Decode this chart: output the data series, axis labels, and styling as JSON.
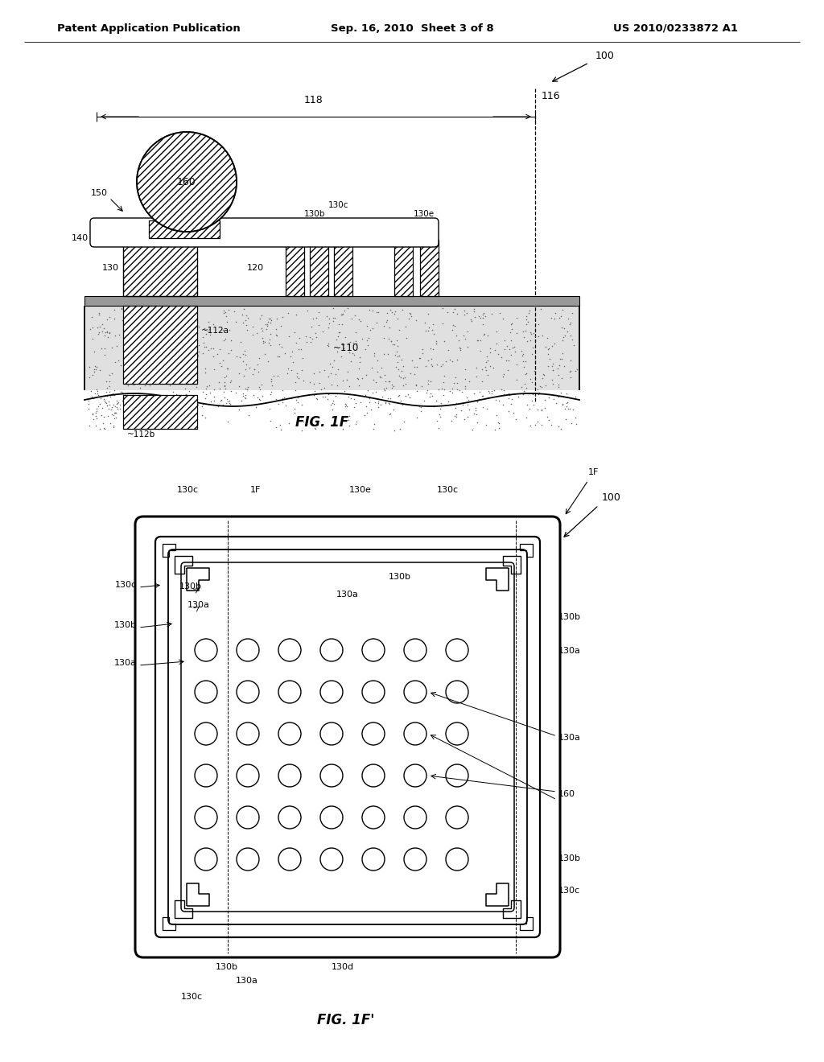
{
  "bg_color": "#ffffff",
  "line_color": "#000000",
  "header_text": "Patent Application Publication",
  "header_date": "Sep. 16, 2010  Sheet 3 of 8",
  "header_patent": "US 2010/0233872 A1",
  "fig1f_label": "FIG. 1F",
  "fig1fp_label": "FIG. 1F'"
}
